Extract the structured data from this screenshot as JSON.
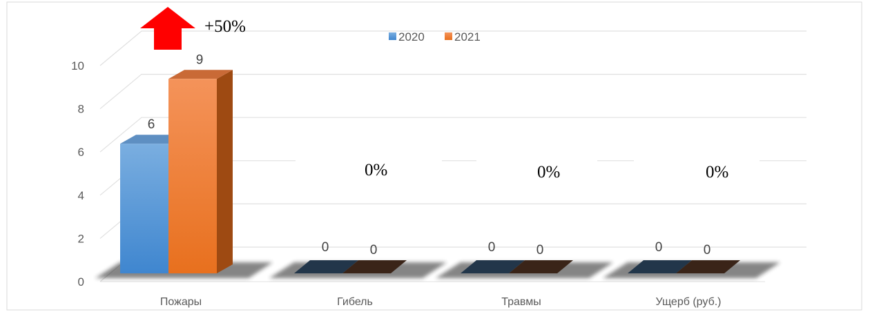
{
  "chart_data": {
    "type": "bar",
    "categories": [
      "Пожары",
      "Гибель",
      "Травмы",
      "Ущерб (руб.)"
    ],
    "series": [
      {
        "name": "2020",
        "values": [
          6,
          0,
          0,
          0
        ]
      },
      {
        "name": "2021",
        "values": [
          9,
          0,
          0,
          0
        ]
      }
    ],
    "yticks": [
      "0",
      "2",
      "4",
      "6",
      "8",
      "10"
    ],
    "ylim": [
      0,
      10
    ],
    "grid": true,
    "legend": "top-center",
    "percent_labels": [
      "+50%",
      "0%",
      "0%",
      "0%"
    ],
    "colors": {
      "2020": "#5B9BD5",
      "2021": "#ED7D31",
      "arrow": "#FF0000"
    }
  }
}
